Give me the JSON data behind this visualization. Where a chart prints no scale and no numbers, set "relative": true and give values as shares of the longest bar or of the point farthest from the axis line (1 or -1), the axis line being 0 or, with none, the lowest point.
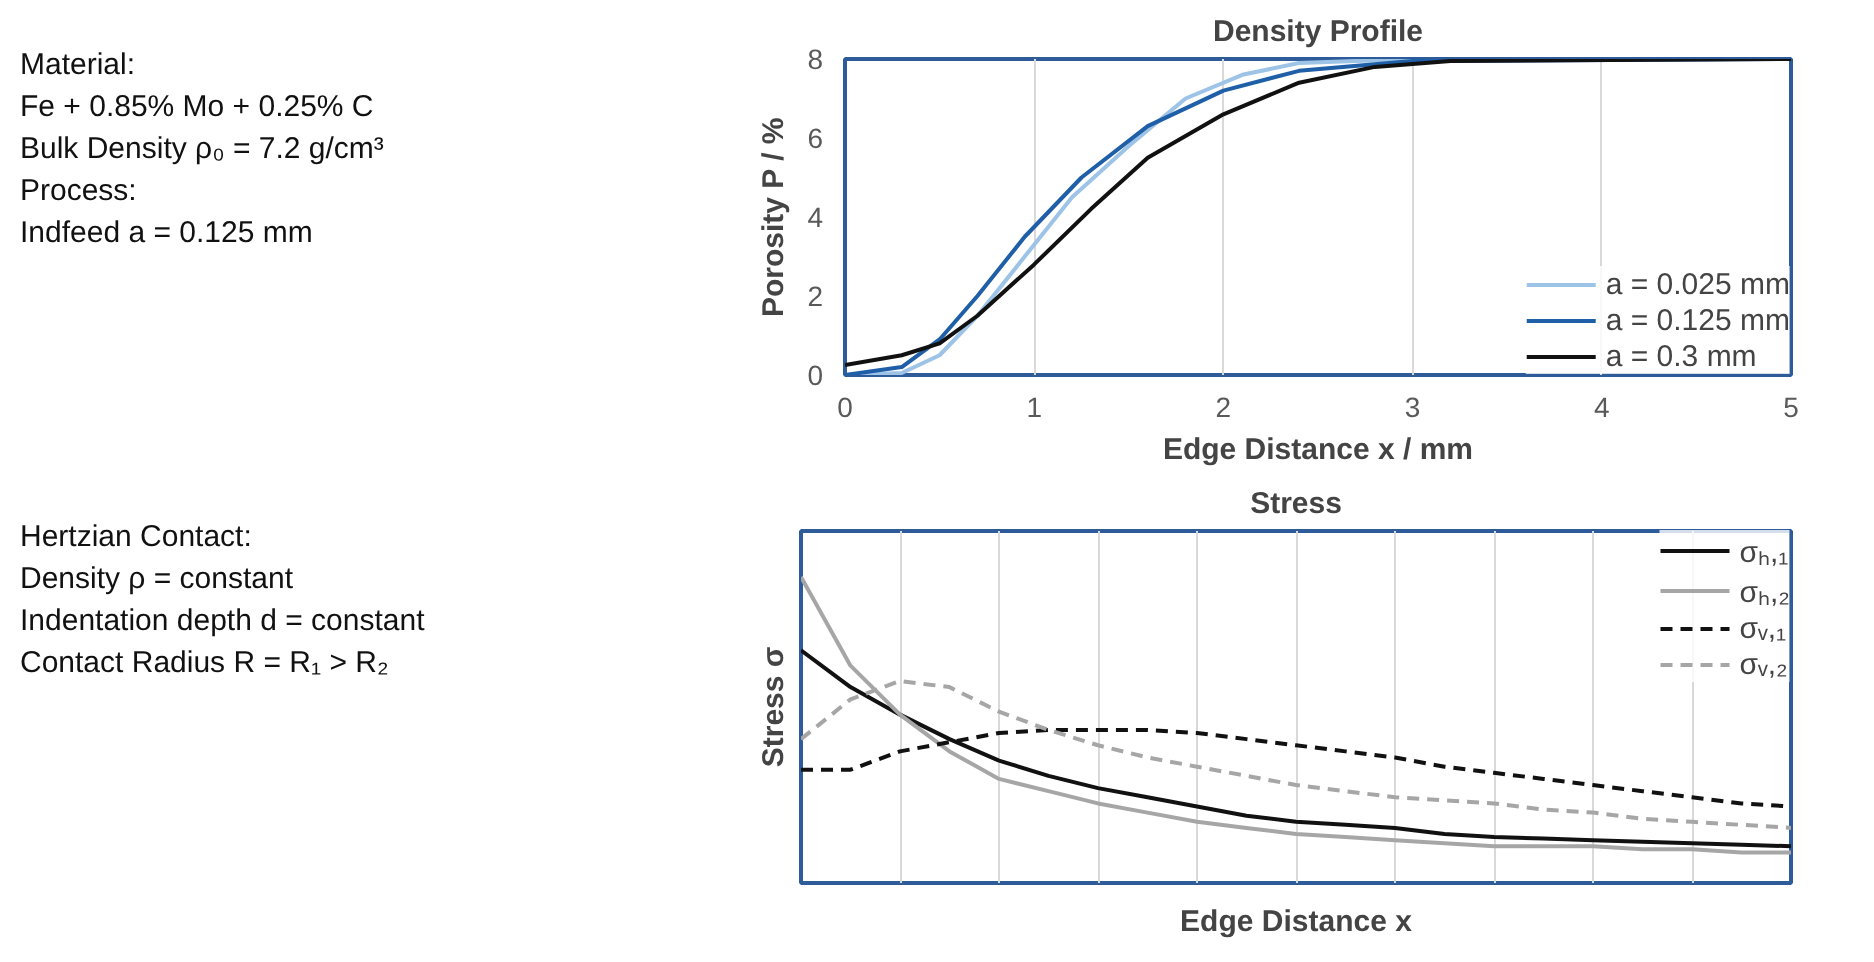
{
  "chart_data": [
    {
      "type": "line",
      "title": "Density Profile",
      "xlabel": "Edge Distance x / mm",
      "ylabel": "Porosity P / %",
      "annotations": [
        "Material:",
        "Fe + 0.85% Mo + 0.25% C",
        "Bulk Density ρ₀ = 7.2 g/cm³",
        "Process:",
        "Indfeed a = 0.125 mm"
      ],
      "xlim": [
        0,
        5
      ],
      "xticks": [
        0,
        1,
        2,
        3,
        4,
        5
      ],
      "ylim": [
        0,
        8
      ],
      "yticks": [
        0,
        2,
        4,
        6,
        8
      ],
      "grid": "x",
      "legend": "bottom right",
      "line_style": "solid",
      "series": [
        {
          "name": "a = 0.025 mm",
          "color": "#9dc3e6",
          "x": [
            0,
            0.3,
            0.5,
            0.7,
            0.95,
            1.2,
            1.5,
            1.8,
            2.1,
            2.4,
            3,
            5
          ],
          "values": [
            0,
            0.05,
            0.5,
            1.5,
            3,
            4.5,
            5.8,
            7,
            7.6,
            7.9,
            8,
            8
          ]
        },
        {
          "name": "a = 0.125 mm",
          "color": "#1f5fa8",
          "x": [
            0,
            0.3,
            0.5,
            0.7,
            0.95,
            1.25,
            1.6,
            2,
            2.4,
            3,
            5
          ],
          "values": [
            0,
            0.2,
            0.9,
            2,
            3.5,
            5,
            6.3,
            7.2,
            7.7,
            7.95,
            8
          ]
        },
        {
          "name": "a = 0.3 mm",
          "color": "#111111",
          "x": [
            0,
            0.3,
            0.5,
            0.7,
            1,
            1.3,
            1.6,
            2,
            2.4,
            2.8,
            3.2,
            5
          ],
          "values": [
            0.25,
            0.5,
            0.8,
            1.5,
            2.8,
            4.2,
            5.5,
            6.6,
            7.4,
            7.8,
            7.95,
            8
          ]
        }
      ]
    },
    {
      "type": "line",
      "title": "Stress",
      "xlabel": "Edge Distance x",
      "ylabel": "Stress σ",
      "relative": true,
      "annotations": [
        "Hertzian Contact:",
        "Density ρ = constant",
        "Indentation depth d = constant",
        "Contact Radius R = R₁ > R₂"
      ],
      "categories": [
        null,
        null,
        null,
        null,
        null,
        null,
        null,
        null,
        null,
        null,
        null,
        null,
        null,
        null,
        null,
        null,
        null,
        null,
        null,
        null,
        null
      ],
      "grid": "x",
      "legend": "top right",
      "series": [
        {
          "name": "σₕ,₁",
          "color": "#111111",
          "line_style": "solid",
          "values": [
            0.76,
            0.64,
            0.55,
            0.47,
            0.4,
            0.35,
            0.31,
            0.28,
            0.25,
            0.22,
            0.2,
            0.19,
            0.18,
            0.16,
            0.15,
            0.145,
            0.14,
            0.135,
            0.13,
            0.125,
            0.12
          ]
        },
        {
          "name": "σₕ,₂",
          "color": "#a6a6a6",
          "line_style": "solid",
          "values": [
            1.0,
            0.71,
            0.55,
            0.43,
            0.34,
            0.3,
            0.26,
            0.23,
            0.2,
            0.18,
            0.16,
            0.15,
            0.14,
            0.13,
            0.12,
            0.12,
            0.12,
            0.11,
            0.11,
            0.1,
            0.1
          ]
        },
        {
          "name": "σᵥ,₁",
          "color": "#111111",
          "line_style": "dashed",
          "values": [
            0.37,
            0.37,
            0.43,
            0.46,
            0.49,
            0.5,
            0.5,
            0.5,
            0.49,
            0.47,
            0.45,
            0.43,
            0.41,
            0.38,
            0.36,
            0.34,
            0.32,
            0.3,
            0.28,
            0.26,
            0.25
          ]
        },
        {
          "name": "σᵥ,₂",
          "color": "#a6a6a6",
          "line_style": "dashed",
          "values": [
            0.47,
            0.6,
            0.66,
            0.64,
            0.56,
            0.5,
            0.45,
            0.41,
            0.38,
            0.35,
            0.32,
            0.3,
            0.28,
            0.27,
            0.26,
            0.24,
            0.23,
            0.21,
            0.2,
            0.19,
            0.18
          ]
        }
      ]
    }
  ]
}
